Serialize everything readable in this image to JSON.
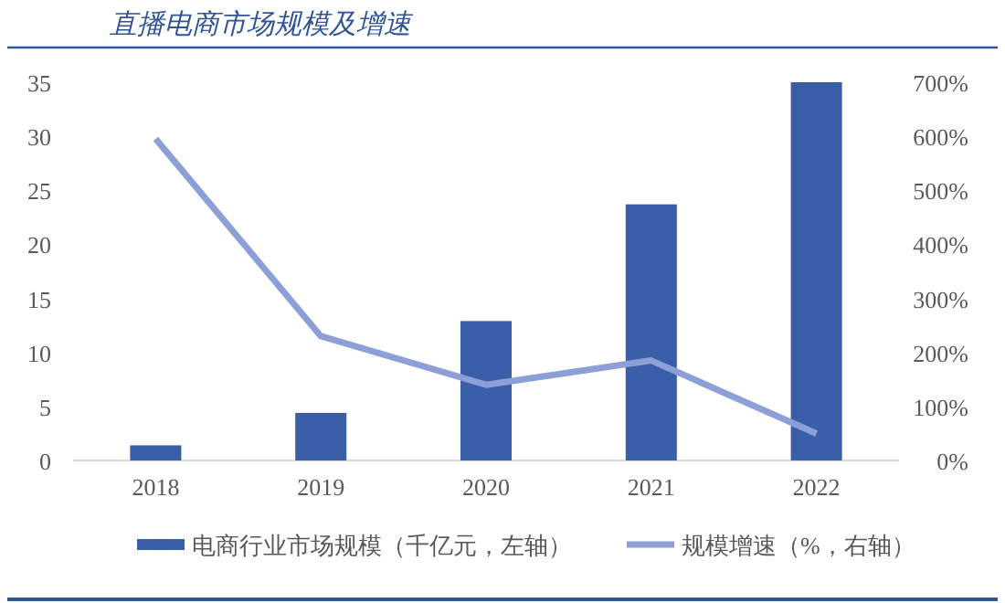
{
  "chart_data": {
    "type": "bar",
    "title": "直播电商市场规模及增速",
    "categories": [
      "2018",
      "2019",
      "2020",
      "2021",
      "2022"
    ],
    "series": [
      {
        "name": "电商行业市场规模（千亿元，左轴）",
        "color": "#3a5ea8",
        "values": [
          1.4,
          4.4,
          12.9,
          23.7,
          35.0
        ]
      },
      {
        "name": "规模增速（%，右轴）",
        "type": "line",
        "axis": "y2",
        "color": "#8c9fd6",
        "values": [
          595,
          230,
          140,
          185,
          50
        ]
      }
    ],
    "ylim": [
      0,
      35
    ],
    "yticks": [
      0,
      5,
      10,
      15,
      20,
      25,
      30,
      35
    ],
    "y2lim": [
      0,
      700
    ],
    "y2ticks": [
      {
        "value": 0,
        "label": "0%"
      },
      {
        "value": 100,
        "label": "100%"
      },
      {
        "value": 200,
        "label": "200%"
      },
      {
        "value": 300,
        "label": "300%"
      },
      {
        "value": 400,
        "label": "400%"
      },
      {
        "value": 500,
        "label": "500%"
      },
      {
        "value": 600,
        "label": "600%"
      },
      {
        "value": 700,
        "label": "700%"
      }
    ],
    "grid": false,
    "legend": "bottom",
    "marker": "none",
    "line_style": "solid"
  }
}
